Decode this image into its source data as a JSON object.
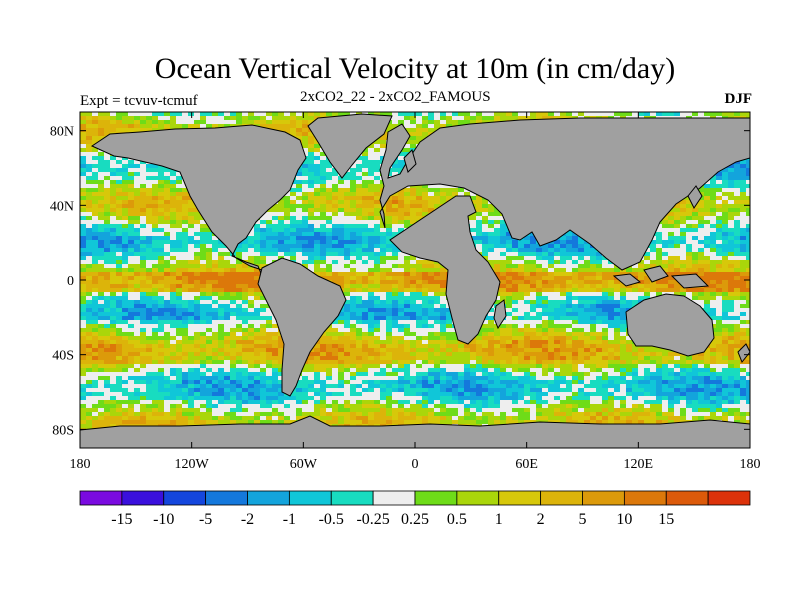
{
  "title": "Ocean Vertical Velocity at 10m (in cm/day)",
  "expt_label": "Expt = tcvuv-tcmuf",
  "subtitle": "2xCO2_22 - 2xCO2_FAMOUS",
  "season": "DJF",
  "map": {
    "lat_ticks": [
      "80N",
      "40N",
      "0",
      "40S",
      "80S"
    ],
    "lon_ticks": [
      "180",
      "120W",
      "60W",
      "0",
      "60E",
      "120E",
      "180"
    ],
    "land_color": "#a0a0a0",
    "coast_color": "#000000"
  },
  "colorbar": {
    "colors": [
      "#7a0ae0",
      "#3a10dd",
      "#1446dd",
      "#1478dc",
      "#13a4dc",
      "#10c6d8",
      "#18dcc0",
      "#eeeeee",
      "#6edc18",
      "#aad60a",
      "#d7c80a",
      "#dcb40a",
      "#dc9a0a",
      "#dc780a",
      "#dc5a0a",
      "#dc320a"
    ],
    "labels": [
      "-15",
      "-10",
      "-5",
      "-2",
      "-1",
      "-0.5",
      "-0.25",
      "0.25",
      "0.5",
      "1",
      "2",
      "5",
      "10",
      "15"
    ]
  }
}
